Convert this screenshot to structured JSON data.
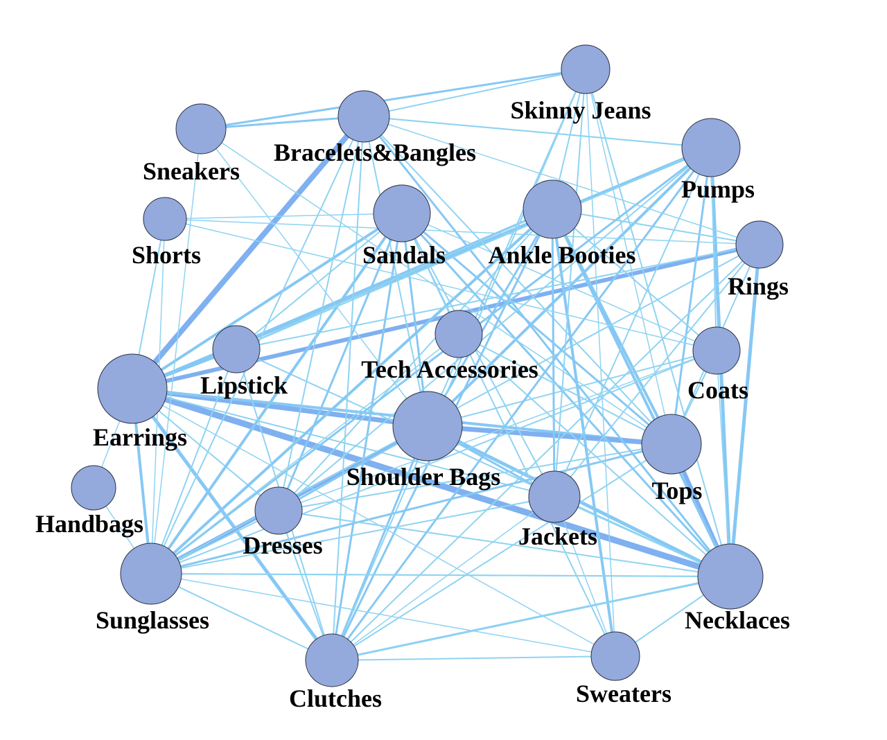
{
  "graph": {
    "colors": {
      "node_fill": "#94a9dc",
      "node_stroke": "#2a2f3f",
      "edge_light": "#8fd3f2",
      "edge_mid": "#86c8f4",
      "edge_strong": "#7fb0f0"
    },
    "nodes": [
      {
        "id": "skinny-jeans",
        "label": "Skinny Jeans"
      },
      {
        "id": "bracelets-bangles",
        "label": "Bracelets&Bangles"
      },
      {
        "id": "sneakers",
        "label": "Sneakers"
      },
      {
        "id": "pumps",
        "label": "Pumps"
      },
      {
        "id": "shorts",
        "label": "Shorts"
      },
      {
        "id": "sandals",
        "label": "Sandals"
      },
      {
        "id": "ankle-booties",
        "label": "Ankle Booties"
      },
      {
        "id": "rings",
        "label": "Rings"
      },
      {
        "id": "lipstick",
        "label": "Lipstick"
      },
      {
        "id": "tech-accessories",
        "label": "Tech Accessories"
      },
      {
        "id": "coats",
        "label": "Coats"
      },
      {
        "id": "earrings",
        "label": "Earrings"
      },
      {
        "id": "shoulder-bags",
        "label": "Shoulder Bags"
      },
      {
        "id": "tops",
        "label": "Tops"
      },
      {
        "id": "handbags",
        "label": "Handbags"
      },
      {
        "id": "jackets",
        "label": "Jackets"
      },
      {
        "id": "dresses",
        "label": "Dresses"
      },
      {
        "id": "sunglasses",
        "label": "Sunglasses"
      },
      {
        "id": "necklaces",
        "label": "Necklaces"
      },
      {
        "id": "clutches",
        "label": "Clutches"
      },
      {
        "id": "sweaters",
        "label": "Sweaters"
      }
    ]
  }
}
